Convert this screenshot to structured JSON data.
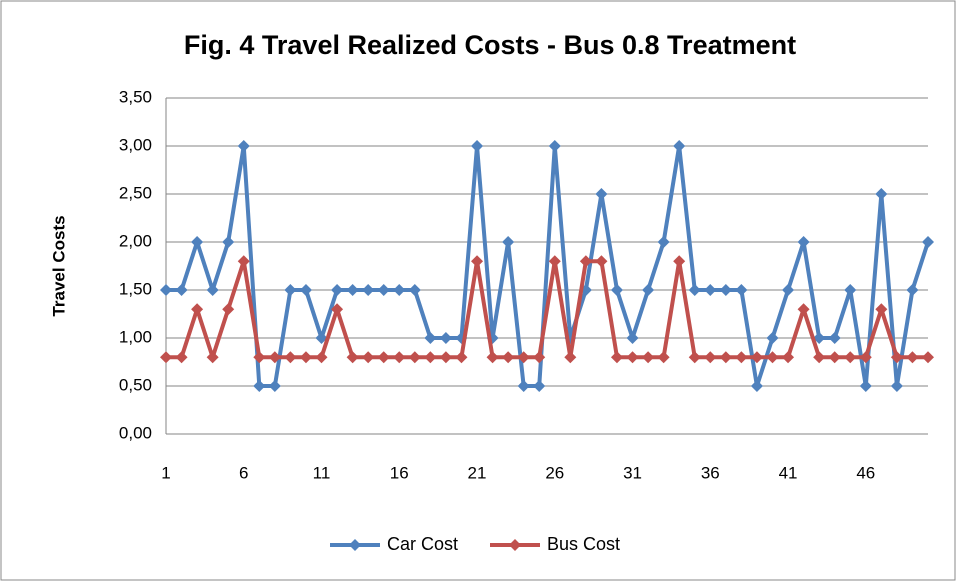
{
  "chart_data": {
    "type": "line",
    "title": "Fig. 4 Travel Realized Costs - Bus 0.8 Treatment",
    "y_label": "Travel Costs",
    "categories": [
      1,
      null,
      null,
      null,
      null,
      6,
      null,
      null,
      null,
      null,
      11,
      null,
      null,
      null,
      null,
      16,
      null,
      null,
      null,
      null,
      21,
      null,
      null,
      null,
      null,
      26,
      null,
      null,
      null,
      null,
      31,
      null,
      null,
      null,
      null,
      36,
      null,
      null,
      null,
      null,
      41,
      null,
      null,
      null,
      null,
      46,
      null,
      null,
      null,
      null
    ],
    "series": [
      {
        "name": "Car Cost",
        "color": "#4f81bd",
        "values": [
          1.5,
          1.5,
          2.0,
          1.5,
          2.0,
          3.0,
          0.5,
          0.5,
          1.5,
          1.5,
          1.0,
          1.5,
          1.5,
          1.5,
          1.5,
          1.5,
          1.5,
          1.0,
          1.0,
          1.0,
          3.0,
          1.0,
          2.0,
          0.5,
          0.5,
          3.0,
          1.0,
          1.5,
          2.5,
          1.5,
          1.0,
          1.5,
          2.0,
          3.0,
          1.5,
          1.5,
          1.5,
          1.5,
          0.5,
          1.0,
          1.5,
          2.0,
          1.0,
          1.0,
          1.5,
          0.5,
          2.5,
          0.5,
          1.5,
          2.0
        ]
      },
      {
        "name": "Bus Cost",
        "color": "#c0504d",
        "values": [
          0.8,
          0.8,
          1.3,
          0.8,
          1.3,
          1.8,
          0.8,
          0.8,
          0.8,
          0.8,
          0.8,
          1.3,
          0.8,
          0.8,
          0.8,
          0.8,
          0.8,
          0.8,
          0.8,
          0.8,
          1.8,
          0.8,
          0.8,
          0.8,
          0.8,
          1.8,
          0.8,
          1.8,
          1.8,
          0.8,
          0.8,
          0.8,
          0.8,
          1.8,
          0.8,
          0.8,
          0.8,
          0.8,
          0.8,
          0.8,
          0.8,
          1.3,
          0.8,
          0.8,
          0.8,
          0.8,
          1.3,
          0.8,
          0.8,
          0.8
        ]
      }
    ],
    "ylim": [
      0,
      3.5
    ],
    "yticks": [
      {
        "value": 0,
        "label": "0,00"
      },
      {
        "value": 0.5,
        "label": "0,50"
      },
      {
        "value": 1,
        "label": "1,00"
      },
      {
        "value": 1.5,
        "label": "1,50"
      },
      {
        "value": 2,
        "label": "2,00"
      },
      {
        "value": 2.5,
        "label": "2,50"
      },
      {
        "value": 3,
        "label": "3,00"
      },
      {
        "value": 3.5,
        "label": "3,50"
      }
    ],
    "grid": true,
    "legend": "bottom"
  }
}
